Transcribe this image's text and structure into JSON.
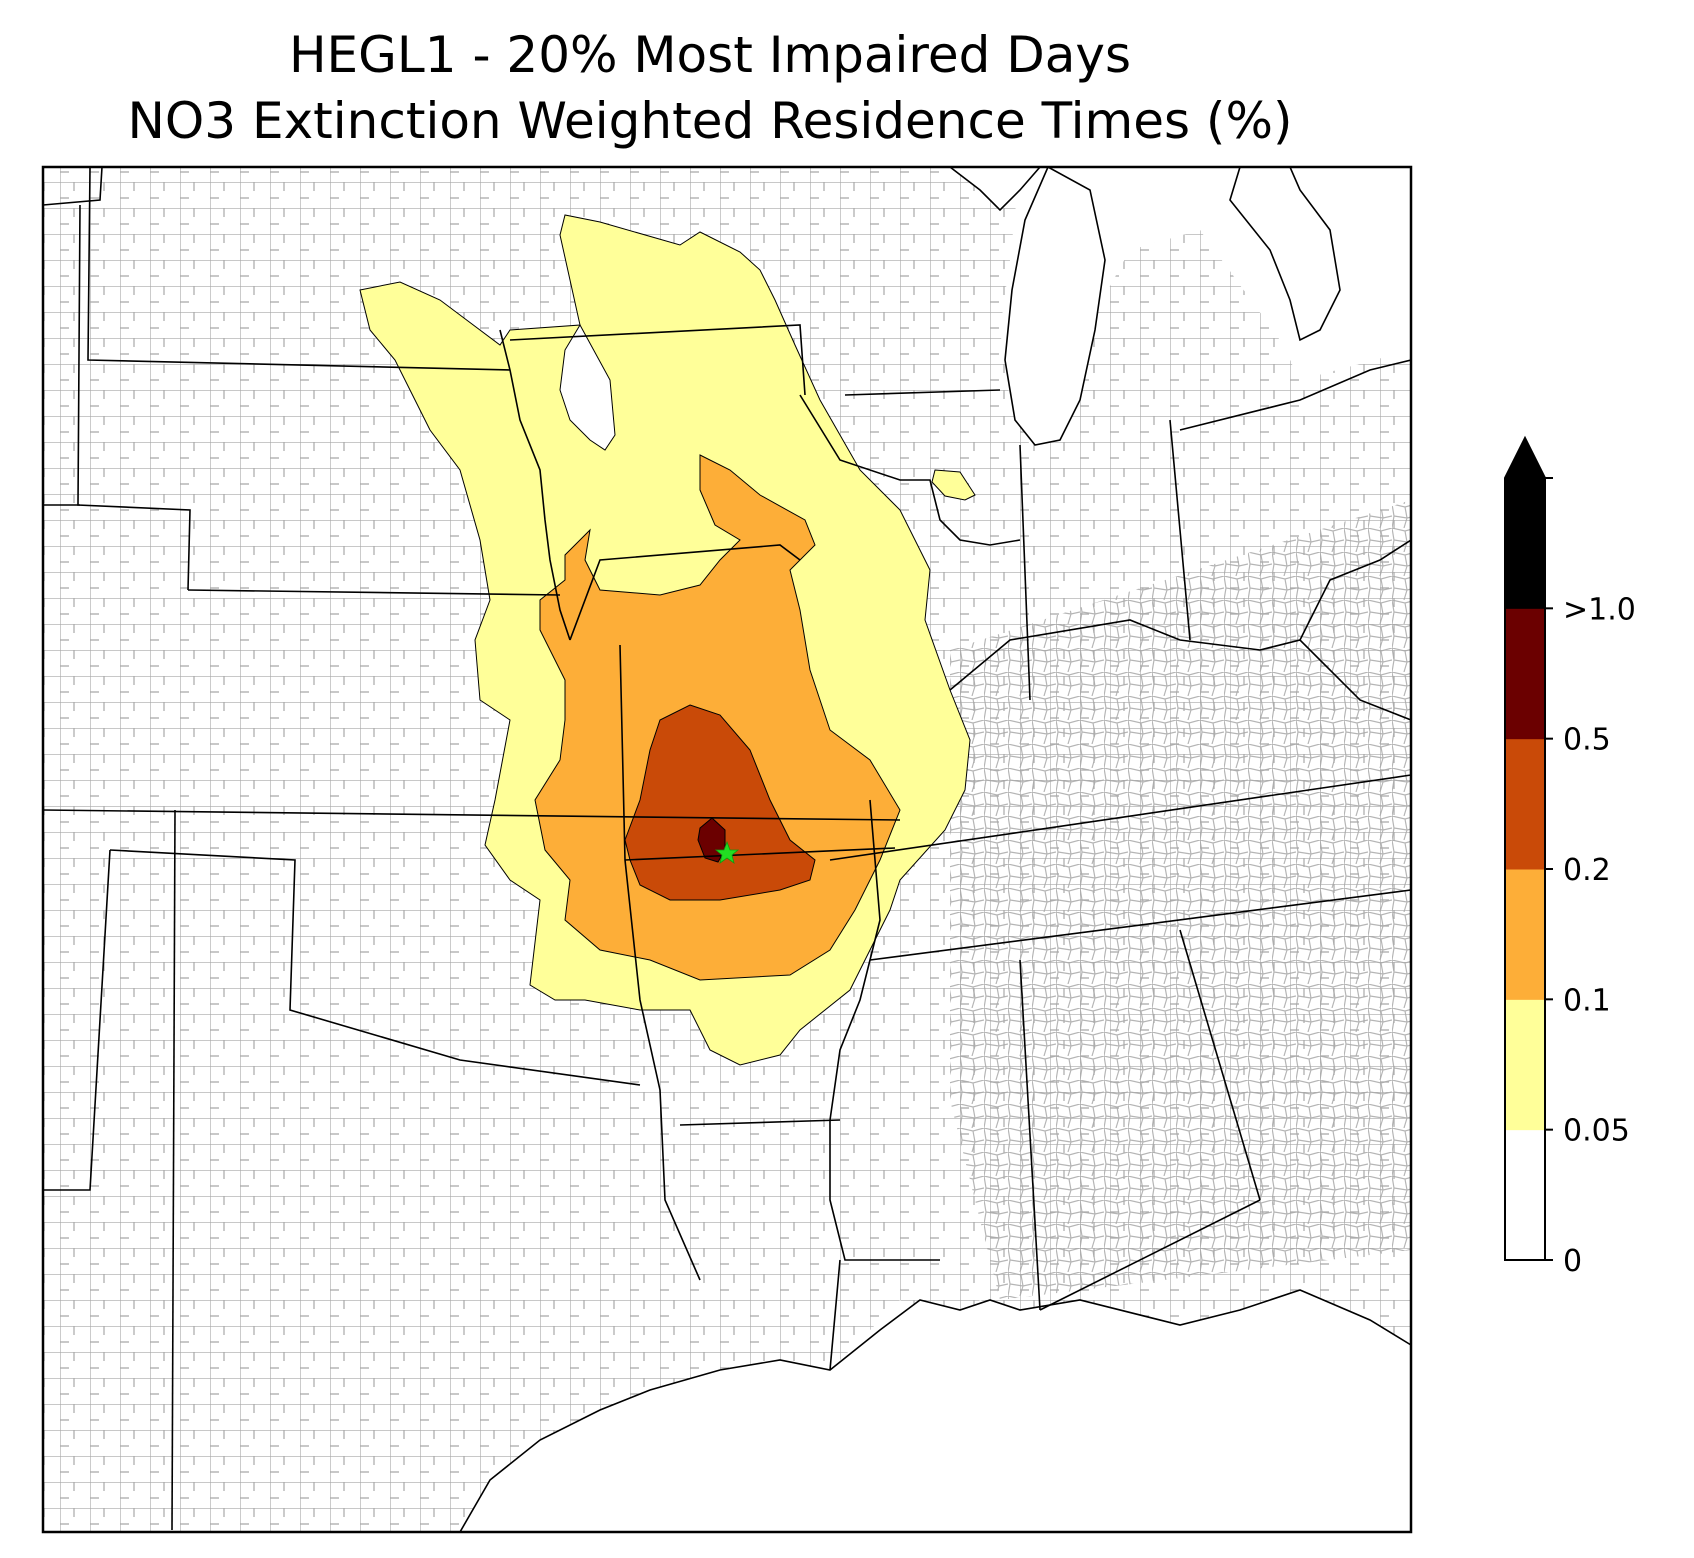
{
  "title": {
    "line1": "HEGL1 - 20% Most Impaired Days",
    "line2": "NO3 Extinction Weighted Residence Times (%)"
  },
  "map": {
    "receptor_site": "HEGL1",
    "receptor_marker_color": "#22dd22",
    "state_line_color": "#000000",
    "county_line_color": "#a0a0a0",
    "contour_bins": [
      {
        "range": [
          0.05,
          0.1
        ],
        "color": "#ffff99"
      },
      {
        "range": [
          0.1,
          0.2
        ],
        "color": "#fdae38"
      },
      {
        "range": [
          0.2,
          0.5
        ],
        "color": "#c94a08"
      },
      {
        "range": [
          0.5,
          1.0
        ],
        "color": "#6b0000"
      },
      {
        "range": [
          1.0,
          null
        ],
        "color": "#000000"
      }
    ]
  },
  "colorbar": {
    "ticks": [
      "0",
      "0.05",
      "0.1",
      "0.2",
      "0.5",
      ">1.0"
    ],
    "segments": [
      {
        "from": "0",
        "to": "0.05",
        "color": "#ffffff"
      },
      {
        "from": "0.05",
        "to": "0.1",
        "color": "#ffff99"
      },
      {
        "from": "0.1",
        "to": "0.2",
        "color": "#fdae38"
      },
      {
        "from": "0.2",
        "to": "0.5",
        "color": "#c94a08"
      },
      {
        "from": "0.5",
        "to": "1.0",
        "color": "#6b0000"
      },
      {
        "from": "1.0",
        "to": "max",
        "color": "#000000"
      }
    ],
    "extend": "max"
  }
}
